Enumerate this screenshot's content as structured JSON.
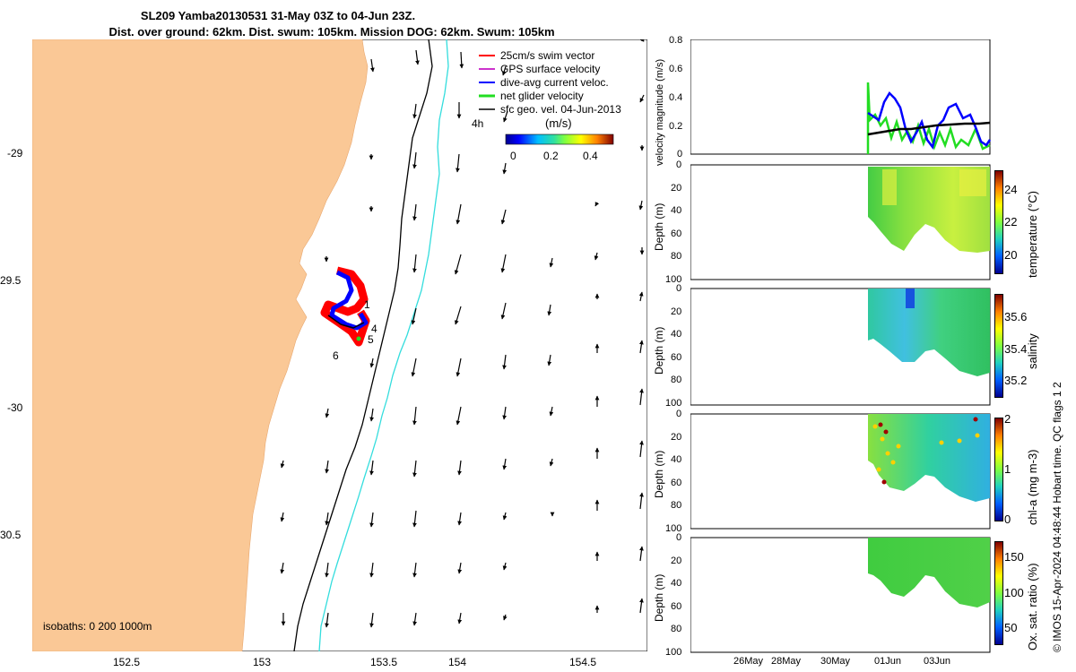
{
  "title": {
    "line1": "SL209 Yamba20130531 31-May 03Z to 04-Jun 23Z.",
    "line2": "Dist. over ground: 62km. Dist. swum: 105km. Mission DOG: 62km. Swum: 105km"
  },
  "map": {
    "lon_ticks": [
      "152.5",
      "153",
      "153.5",
      "154",
      "154.5"
    ],
    "lat_ticks": [
      "-29",
      "29.5",
      "-30",
      "30.5"
    ],
    "isobaths_label": "isobaths: 0   200  1000m",
    "legend": [
      {
        "label": "25cm/s swim vector",
        "color": "#ff0000"
      },
      {
        "label": "GPS surface velocity",
        "color": "#cc33cc"
      },
      {
        "label": "dive-avg current veloc.",
        "color": "#0000ff"
      },
      {
        "label": "net glider velocity",
        "color": "#22dd22"
      },
      {
        "label": "sfc geo. vel. 04-Jun-2013",
        "color": "#000000"
      }
    ],
    "time_label": "4h",
    "colorbar_title": "(m/s)",
    "colorbar_ticks": [
      "0",
      "0.2",
      "0.4"
    ],
    "track_labels": [
      "1",
      "4",
      "5",
      "6"
    ],
    "colors": {
      "land": "#fac896",
      "isobath_200": "#000000",
      "isobath_1000": "#33dddd"
    }
  },
  "panels": {
    "velocity": {
      "ylabel": "velocity magnitude (m/s)",
      "yticks": [
        "0.8",
        "0.6",
        "0.4",
        "0.2",
        "0"
      ]
    },
    "temperature": {
      "ylabel": "Depth (m)",
      "cbar_label": "temperature (°C)",
      "cbar_ticks": [
        "24",
        "22",
        "20"
      ]
    },
    "salinity": {
      "ylabel": "Depth (m)",
      "cbar_label": "salinity",
      "cbar_ticks": [
        "35.6",
        "35.4",
        "35.2"
      ]
    },
    "chla": {
      "ylabel": "Depth (m)",
      "cbar_label": "chl-a (mg m-3)",
      "cbar_ticks": [
        "2",
        "1",
        "0"
      ]
    },
    "oxygen": {
      "ylabel": "Depth (m)",
      "cbar_label": "Ox. sat. ratio (%)",
      "cbar_ticks": [
        "150",
        "100",
        "50"
      ]
    },
    "depth_ticks": [
      "0",
      "20",
      "40",
      "60",
      "80",
      "100"
    ],
    "date_ticks": [
      "26May",
      "28May",
      "30May",
      "01Jun",
      "03Jun"
    ]
  },
  "credit": "© IMOS 15-Apr-2024 04:48:44 Hobart time. QC flags 1  2"
}
